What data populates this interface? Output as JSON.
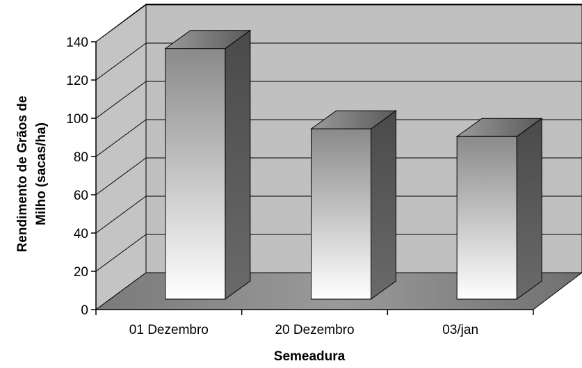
{
  "chart_data": {
    "type": "bar",
    "title": "",
    "xlabel": "Semeadura",
    "ylabel_lines": [
      "Rendimento de Grãos de",
      "Milho (sacas/ha)"
    ],
    "categories": [
      "01 Dezembro",
      "20 Dezembro",
      "03/jan"
    ],
    "values": [
      131,
      89,
      85
    ],
    "ylim": [
      0,
      140
    ],
    "yticks": [
      "0",
      "20",
      "40",
      "60",
      "80",
      "100",
      "120",
      "140"
    ],
    "grid": true,
    "legend": "none",
    "style": "3d-column",
    "colors": {
      "back_wall": "#c0c0c0",
      "floor": "#808080",
      "bar_front_top": "#8a8a8a",
      "bar_front_bottom": "#ffffff",
      "bar_side": "#4a4a4a",
      "gridline": "#000000"
    }
  }
}
